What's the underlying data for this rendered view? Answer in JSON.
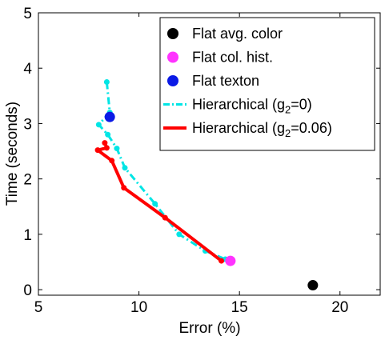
{
  "chart_data": {
    "type": "line",
    "xlabel": "Error (%)",
    "ylabel": "Time (seconds)",
    "xlim": [
      5,
      22
    ],
    "ylim": [
      -0.1,
      5
    ],
    "x_ticks": [
      5,
      10,
      15,
      20
    ],
    "y_ticks": [
      0,
      1,
      2,
      3,
      4,
      5
    ],
    "x_tick_labels": [
      "5",
      "10",
      "15",
      "20"
    ],
    "y_tick_labels": [
      "0",
      "1",
      "2",
      "3",
      "4",
      "5"
    ],
    "grid": false,
    "legend_position": "top-right",
    "legend": [
      {
        "key": "avg",
        "prefix": "Flat avg. color",
        "sub": "",
        "suffix": "",
        "kind": "marker",
        "color": "#000000"
      },
      {
        "key": "hist",
        "prefix": "Flat col. hist.",
        "sub": "",
        "suffix": "",
        "kind": "marker",
        "color": "#ff33ff"
      },
      {
        "key": "texton",
        "prefix": "Flat texton",
        "sub": "",
        "suffix": "",
        "kind": "marker",
        "color": "#0b1ae6"
      },
      {
        "key": "g0",
        "prefix": "Hierarchical (g",
        "sub": "2",
        "suffix": "=0)",
        "kind": "dashdot",
        "color": "#00e5e5"
      },
      {
        "key": "g006",
        "prefix": "Hierarchical (g",
        "sub": "2",
        "suffix": "=0.06)",
        "kind": "solid",
        "color": "#ff0000"
      }
    ],
    "series": [
      {
        "key": "g0",
        "style": "dashdot",
        "color": "#00e5e5",
        "points": [
          {
            "x": 8.4,
            "y": 3.75
          },
          {
            "x": 8.55,
            "y": 3.2
          },
          {
            "x": 8.0,
            "y": 2.98
          },
          {
            "x": 8.45,
            "y": 2.8
          },
          {
            "x": 8.9,
            "y": 2.55
          },
          {
            "x": 9.3,
            "y": 2.2
          },
          {
            "x": 10.8,
            "y": 1.55
          },
          {
            "x": 12.0,
            "y": 1.0
          },
          {
            "x": 13.3,
            "y": 0.7
          },
          {
            "x": 14.3,
            "y": 0.55
          }
        ]
      },
      {
        "key": "g006",
        "style": "solid",
        "color": "#ff0000",
        "points": [
          {
            "x": 8.3,
            "y": 2.65
          },
          {
            "x": 8.4,
            "y": 2.56
          },
          {
            "x": 7.95,
            "y": 2.52
          },
          {
            "x": 8.65,
            "y": 2.33
          },
          {
            "x": 9.25,
            "y": 1.84
          },
          {
            "x": 11.3,
            "y": 1.3
          },
          {
            "x": 14.1,
            "y": 0.52
          }
        ]
      }
    ],
    "markers": [
      {
        "key": "avg",
        "color": "#000000",
        "x": 18.65,
        "y": 0.08
      },
      {
        "key": "hist",
        "color": "#ff33ff",
        "x": 14.55,
        "y": 0.52
      },
      {
        "key": "texton",
        "color": "#0b1ae6",
        "x": 8.55,
        "y": 3.12
      }
    ]
  }
}
